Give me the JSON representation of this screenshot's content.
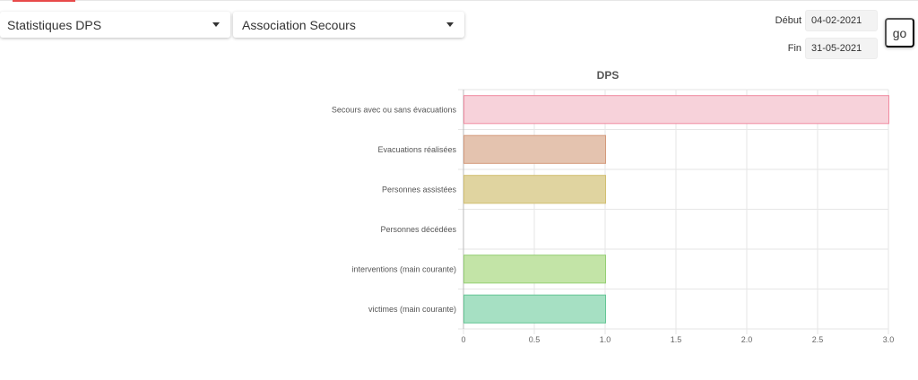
{
  "filters": {
    "stat_select": "Statistiques DPS",
    "org_select": "Association Secours"
  },
  "dates": {
    "start_label": "Début",
    "start_value": "04-02-2021",
    "end_label": "Fin",
    "end_value": "31-05-2021"
  },
  "go_label": "go",
  "chart_data": {
    "type": "bar",
    "orientation": "horizontal",
    "title": "DPS",
    "categories": [
      "Secours avec ou sans évacuations",
      "Evacuations réalisées",
      "Personnes assistées",
      "Personnes décédées",
      "interventions (main courante)",
      "victimes (main courante)"
    ],
    "values": [
      3,
      1,
      1,
      0,
      1,
      1
    ],
    "fill_colors": [
      "#f7d2da",
      "#e4c3af",
      "#e0d4a0",
      "#f2dcd8",
      "#c3e4a7",
      "#a6e0c3"
    ],
    "stroke_colors": [
      "#f08aa0",
      "#d49a7c",
      "#d2bf72",
      "#e6a29a",
      "#95cf74",
      "#66c695"
    ],
    "xlim": [
      0,
      3
    ],
    "xticks": [
      "0",
      "0.5",
      "1.0",
      "1.5",
      "2.0",
      "2.5",
      "3.0"
    ],
    "grid": true
  }
}
